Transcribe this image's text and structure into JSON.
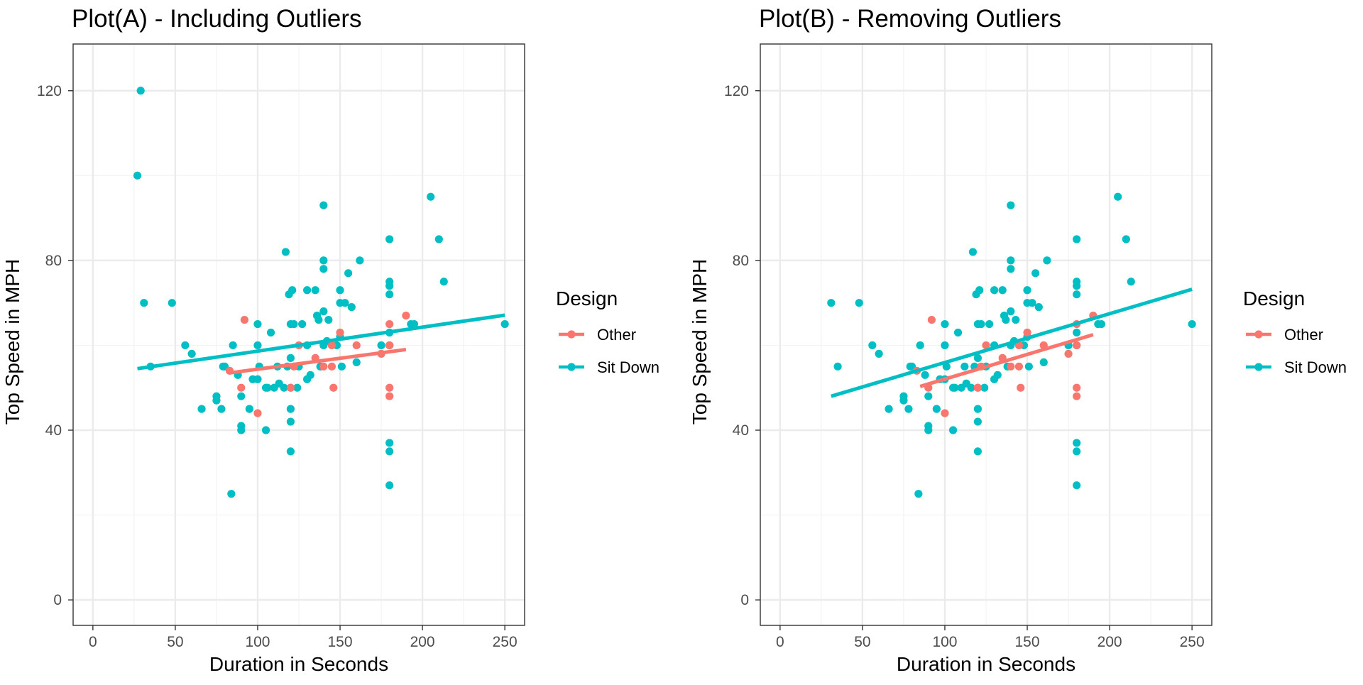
{
  "colors": {
    "other": "#F8766D",
    "sit_down": "#00BFC4"
  },
  "legend": {
    "title": "Design",
    "entries": [
      {
        "name": "Other",
        "color": "#F8766D"
      },
      {
        "name": "Sit Down",
        "color": "#00BFC4"
      }
    ]
  },
  "chart_data": [
    {
      "type": "scatter",
      "title": "Plot(A) - Including Outliers",
      "xlabel": "Duration in Seconds",
      "ylabel": "Top Speed in MPH",
      "xlim": [
        -12,
        262
      ],
      "ylim": [
        -6,
        131
      ],
      "xticks": [
        0,
        50,
        100,
        150,
        200,
        250
      ],
      "yticks": [
        0,
        40,
        80,
        120
      ],
      "grid": true,
      "legend_position": "right",
      "series": [
        {
          "name": "Sit Down",
          "color": "#00BFC4",
          "points": [
            [
              27,
              100
            ],
            [
              29,
              120
            ],
            [
              31,
              70
            ],
            [
              35,
              55
            ],
            [
              48,
              70
            ],
            [
              56,
              60
            ],
            [
              60,
              58
            ],
            [
              66,
              45
            ],
            [
              75,
              48
            ],
            [
              75,
              47
            ],
            [
              78,
              45
            ],
            [
              79,
              55
            ],
            [
              80,
              55
            ],
            [
              84,
              25
            ],
            [
              85,
              60
            ],
            [
              88,
              53
            ],
            [
              90,
              41
            ],
            [
              90,
              40
            ],
            [
              90,
              48
            ],
            [
              95,
              45
            ],
            [
              97,
              52
            ],
            [
              100,
              52
            ],
            [
              100,
              65
            ],
            [
              100,
              60
            ],
            [
              101,
              55
            ],
            [
              105,
              50
            ],
            [
              105,
              40
            ],
            [
              106,
              50
            ],
            [
              108,
              63
            ],
            [
              110,
              50
            ],
            [
              112,
              55
            ],
            [
              113,
              51
            ],
            [
              116,
              50
            ],
            [
              117,
              82
            ],
            [
              118,
              55
            ],
            [
              119,
              72
            ],
            [
              120,
              65
            ],
            [
              120,
              57
            ],
            [
              120,
              45
            ],
            [
              120,
              42
            ],
            [
              120,
              35
            ],
            [
              120,
              50
            ],
            [
              121,
              73
            ],
            [
              122,
              65
            ],
            [
              124,
              50
            ],
            [
              125,
              55
            ],
            [
              127,
              65
            ],
            [
              130,
              52
            ],
            [
              130,
              60
            ],
            [
              130,
              73
            ],
            [
              132,
              53
            ],
            [
              135,
              73
            ],
            [
              136,
              67
            ],
            [
              137,
              66
            ],
            [
              138,
              55
            ],
            [
              140,
              93
            ],
            [
              140,
              80
            ],
            [
              140,
              78
            ],
            [
              140,
              68
            ],
            [
              140,
              60
            ],
            [
              142,
              61
            ],
            [
              143,
              66
            ],
            [
              148,
              60
            ],
            [
              150,
              70
            ],
            [
              150,
              73
            ],
            [
              150,
              62
            ],
            [
              151,
              55
            ],
            [
              153,
              70
            ],
            [
              155,
              77
            ],
            [
              157,
              69
            ],
            [
              160,
              56
            ],
            [
              162,
              80
            ],
            [
              175,
              60
            ],
            [
              180,
              85
            ],
            [
              180,
              75
            ],
            [
              180,
              74
            ],
            [
              180,
              72
            ],
            [
              180,
              63
            ],
            [
              180,
              37
            ],
            [
              180,
              35
            ],
            [
              180,
              27
            ],
            [
              180,
              60
            ],
            [
              193,
              65
            ],
            [
              195,
              65
            ],
            [
              205,
              95
            ],
            [
              210,
              85
            ],
            [
              213,
              75
            ],
            [
              250,
              65
            ]
          ],
          "fit": {
            "x": [
              27,
              250
            ],
            "y": [
              54.5,
              67.1
            ]
          }
        },
        {
          "name": "Other",
          "color": "#F8766D",
          "points": [
            [
              83,
              54
            ],
            [
              90,
              50
            ],
            [
              92,
              66
            ],
            [
              100,
              44
            ],
            [
              120,
              50
            ],
            [
              122,
              55
            ],
            [
              125,
              60
            ],
            [
              135,
              57
            ],
            [
              140,
              55
            ],
            [
              145,
              60
            ],
            [
              145,
              55
            ],
            [
              146,
              50
            ],
            [
              150,
              63
            ],
            [
              160,
              60
            ],
            [
              175,
              58
            ],
            [
              180,
              65
            ],
            [
              180,
              60
            ],
            [
              180,
              50
            ],
            [
              180,
              48
            ],
            [
              190,
              67
            ]
          ],
          "fit": {
            "x": [
              83,
              190
            ],
            "y": [
              53.5,
              59.0
            ]
          }
        }
      ]
    },
    {
      "type": "scatter",
      "title": "Plot(B) - Removing Outliers",
      "xlabel": "Duration in Seconds",
      "ylabel": "Top Speed in MPH",
      "xlim": [
        -12,
        262
      ],
      "ylim": [
        -6,
        131
      ],
      "xticks": [
        0,
        50,
        100,
        150,
        200,
        250
      ],
      "yticks": [
        0,
        40,
        80,
        120
      ],
      "grid": true,
      "legend_position": "right",
      "series": [
        {
          "name": "Sit Down",
          "color": "#00BFC4",
          "points": [
            [
              31,
              70
            ],
            [
              35,
              55
            ],
            [
              48,
              70
            ],
            [
              56,
              60
            ],
            [
              60,
              58
            ],
            [
              66,
              45
            ],
            [
              75,
              48
            ],
            [
              75,
              47
            ],
            [
              78,
              45
            ],
            [
              79,
              55
            ],
            [
              80,
              55
            ],
            [
              84,
              25
            ],
            [
              85,
              60
            ],
            [
              88,
              53
            ],
            [
              90,
              41
            ],
            [
              90,
              40
            ],
            [
              90,
              48
            ],
            [
              95,
              45
            ],
            [
              97,
              52
            ],
            [
              100,
              52
            ],
            [
              100,
              65
            ],
            [
              100,
              60
            ],
            [
              101,
              55
            ],
            [
              105,
              50
            ],
            [
              105,
              40
            ],
            [
              106,
              50
            ],
            [
              108,
              63
            ],
            [
              110,
              50
            ],
            [
              112,
              55
            ],
            [
              113,
              51
            ],
            [
              116,
              50
            ],
            [
              117,
              82
            ],
            [
              118,
              55
            ],
            [
              119,
              72
            ],
            [
              120,
              65
            ],
            [
              120,
              57
            ],
            [
              120,
              45
            ],
            [
              120,
              42
            ],
            [
              120,
              35
            ],
            [
              120,
              50
            ],
            [
              121,
              73
            ],
            [
              122,
              65
            ],
            [
              124,
              50
            ],
            [
              125,
              55
            ],
            [
              127,
              65
            ],
            [
              130,
              52
            ],
            [
              130,
              60
            ],
            [
              130,
              73
            ],
            [
              132,
              53
            ],
            [
              135,
              73
            ],
            [
              136,
              67
            ],
            [
              137,
              66
            ],
            [
              138,
              55
            ],
            [
              140,
              93
            ],
            [
              140,
              80
            ],
            [
              140,
              78
            ],
            [
              140,
              68
            ],
            [
              140,
              60
            ],
            [
              142,
              61
            ],
            [
              143,
              66
            ],
            [
              148,
              60
            ],
            [
              150,
              70
            ],
            [
              150,
              73
            ],
            [
              150,
              62
            ],
            [
              151,
              55
            ],
            [
              153,
              70
            ],
            [
              155,
              77
            ],
            [
              157,
              69
            ],
            [
              160,
              56
            ],
            [
              162,
              80
            ],
            [
              175,
              60
            ],
            [
              180,
              85
            ],
            [
              180,
              75
            ],
            [
              180,
              74
            ],
            [
              180,
              72
            ],
            [
              180,
              63
            ],
            [
              180,
              37
            ],
            [
              180,
              35
            ],
            [
              180,
              27
            ],
            [
              180,
              60
            ],
            [
              193,
              65
            ],
            [
              195,
              65
            ],
            [
              205,
              95
            ],
            [
              210,
              85
            ],
            [
              213,
              75
            ],
            [
              250,
              65
            ]
          ],
          "fit": {
            "x": [
              31,
              250
            ],
            "y": [
              48.0,
              73.2
            ]
          }
        },
        {
          "name": "Other",
          "color": "#F8766D",
          "points": [
            [
              83,
              54
            ],
            [
              90,
              50
            ],
            [
              92,
              66
            ],
            [
              100,
              44
            ],
            [
              120,
              50
            ],
            [
              122,
              55
            ],
            [
              125,
              60
            ],
            [
              135,
              57
            ],
            [
              140,
              55
            ],
            [
              145,
              60
            ],
            [
              145,
              55
            ],
            [
              146,
              50
            ],
            [
              150,
              63
            ],
            [
              160,
              60
            ],
            [
              175,
              58
            ],
            [
              180,
              65
            ],
            [
              180,
              60
            ],
            [
              180,
              50
            ],
            [
              180,
              48
            ],
            [
              190,
              67
            ]
          ],
          "fit": {
            "x": [
              85,
              190
            ],
            "y": [
              50.3,
              62.5
            ]
          }
        }
      ]
    }
  ]
}
